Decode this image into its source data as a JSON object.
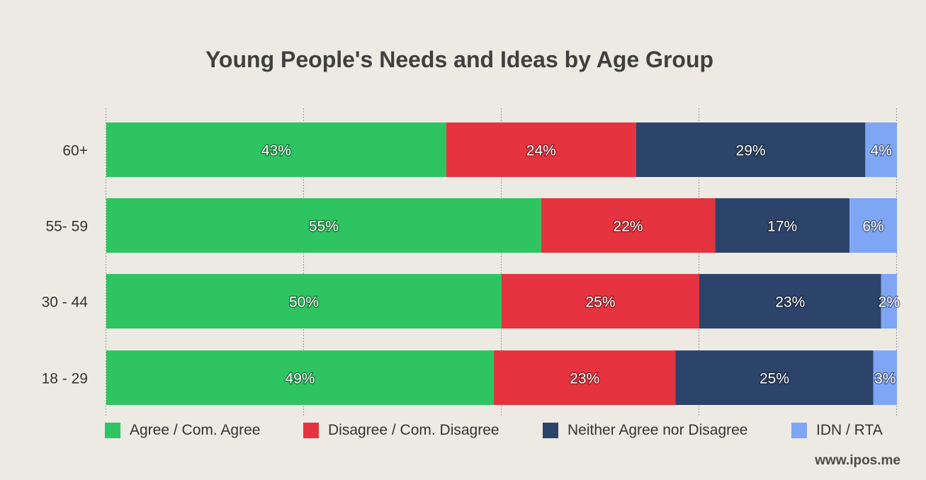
{
  "chart_data": {
    "type": "bar",
    "orientation": "horizontal",
    "stacked": true,
    "title": "Young People's Needs and Ideas by Age Group",
    "categories": [
      "60+",
      "55- 59",
      "30 - 44",
      "18 - 29"
    ],
    "series": [
      {
        "name": "Agree / Com. Agree",
        "color": "#2ec462",
        "values": [
          43,
          55,
          50,
          49
        ],
        "labels": [
          "43%",
          "55%",
          "50%",
          "49%"
        ]
      },
      {
        "name": "Disagree / Com. Disagree",
        "color": "#e5333f",
        "values": [
          24,
          22,
          25,
          23
        ],
        "labels": [
          "24%",
          "22%",
          "25%",
          "23%"
        ]
      },
      {
        "name": "Neither Agree nor Disagree",
        "color": "#2c4469",
        "values": [
          29,
          17,
          23,
          25
        ],
        "labels": [
          "29%",
          "17%",
          "23%",
          "25%"
        ]
      },
      {
        "name": "IDN / RTA",
        "color": "#7fa6f4",
        "values": [
          4,
          6,
          2,
          3
        ],
        "labels": [
          "4%",
          "6%",
          "2%",
          "3%"
        ]
      }
    ],
    "xlim": [
      0,
      100
    ],
    "grid": true,
    "legend_position": "bottom"
  },
  "watermark": "www.ipos.me"
}
